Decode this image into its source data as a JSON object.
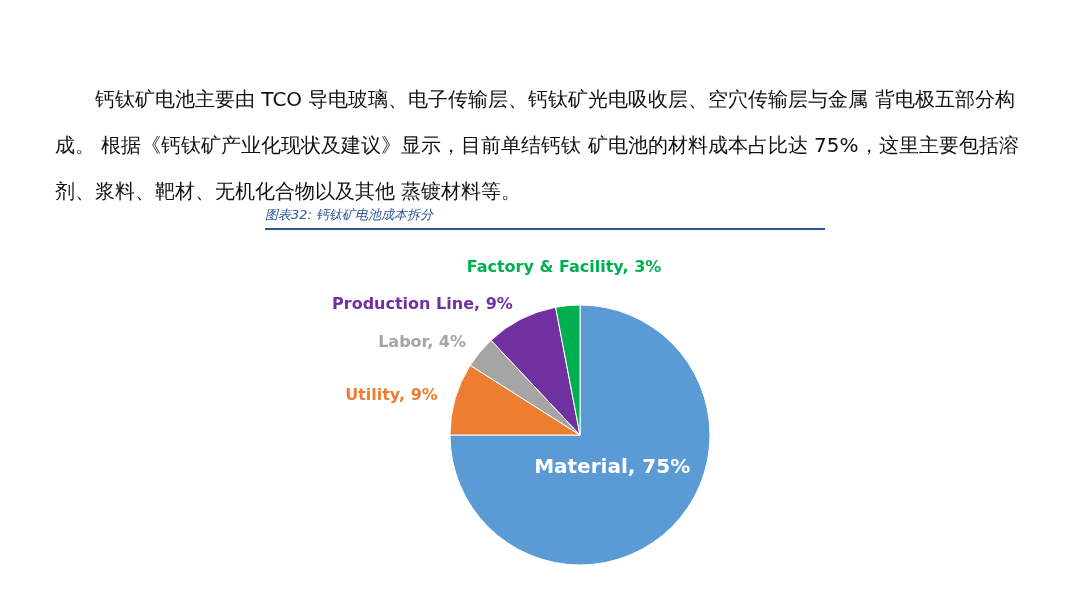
{
  "chart_data": {
    "type": "pie",
    "title": "图表32: 钙钛矿电池成本拆分",
    "annotations": [
      "钙钛矿电池主要由 TCO 导电玻璃、电子传输层、钙钛矿光电吸收层、空穴传输层与金属 背电极五部分构成。 根据《钙钛矿产业化现状及建议》显示，目前单结钙钛 矿电池的材料成本占比达 75%，这里主要包括溶剂、浆料、靶材、无机化合物以及其他 蒸镀材料等。"
    ],
    "categories": [
      "Material",
      "Utility",
      "Labor",
      "Production Line",
      "Factory & Facility"
    ],
    "values": [
      75,
      9,
      4,
      9,
      3
    ],
    "colors": [
      "#5b9bd5",
      "#ed7d31",
      "#a5a5a5",
      "#7030a0",
      "#00b050"
    ],
    "value_labels": [
      ", 75%",
      ", 9%",
      ", 4%",
      ", 9%",
      ", 3%"
    ]
  }
}
